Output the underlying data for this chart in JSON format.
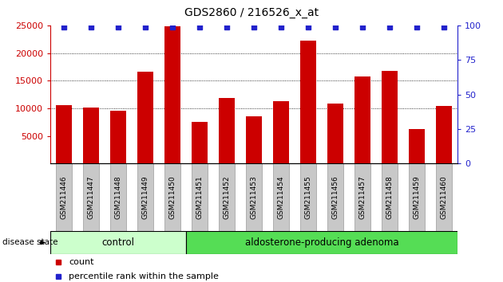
{
  "title": "GDS2860 / 216526_x_at",
  "categories": [
    "GSM211446",
    "GSM211447",
    "GSM211448",
    "GSM211449",
    "GSM211450",
    "GSM211451",
    "GSM211452",
    "GSM211453",
    "GSM211454",
    "GSM211455",
    "GSM211456",
    "GSM211457",
    "GSM211458",
    "GSM211459",
    "GSM211460"
  ],
  "counts": [
    10600,
    10200,
    9600,
    16600,
    24800,
    7500,
    11900,
    8500,
    11300,
    22300,
    10900,
    15800,
    16700,
    6300,
    10400
  ],
  "percentiles": [
    99,
    99,
    99,
    99,
    99,
    99,
    99,
    99,
    99,
    99,
    99,
    99,
    99,
    99,
    99
  ],
  "bar_color": "#cc0000",
  "percentile_color": "#2222cc",
  "ylim_left": [
    0,
    25000
  ],
  "ylim_right": [
    0,
    100
  ],
  "yticks_left": [
    5000,
    10000,
    15000,
    20000,
    25000
  ],
  "yticks_right": [
    0,
    25,
    50,
    75,
    100
  ],
  "ylabel_left_color": "#cc0000",
  "ylabel_right_color": "#2222cc",
  "group_labels": [
    "control",
    "aldosterone-producing adenoma"
  ],
  "group_colors": [
    "#ccffcc",
    "#55dd55"
  ],
  "disease_state_label": "disease state",
  "legend_count_label": "count",
  "legend_percentile_label": "percentile rank within the sample",
  "background_color": "#ffffff",
  "tick_label_bg": "#c8c8c8",
  "n_control": 5,
  "n_total": 15
}
